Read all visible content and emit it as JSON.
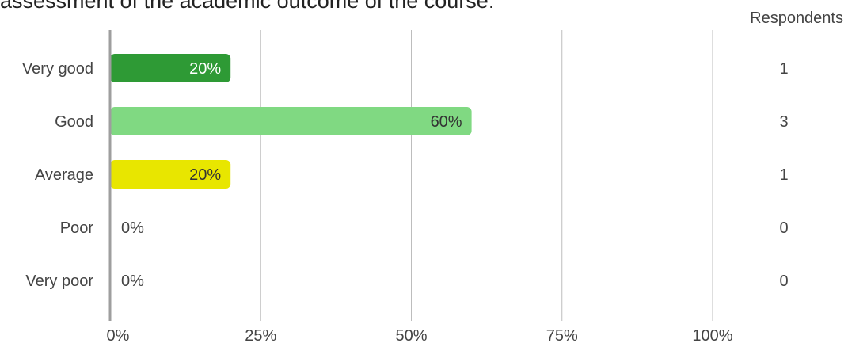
{
  "header": {
    "title": "assessment of the academic outcome of the course:",
    "respondents_label": "Respondents"
  },
  "chart_data": {
    "type": "bar",
    "orientation": "horizontal",
    "title": "assessment of the academic outcome of the course:",
    "categories": [
      "Very good",
      "Good",
      "Average",
      "Poor",
      "Very poor"
    ],
    "values": [
      20,
      60,
      20,
      0,
      0
    ],
    "value_labels": [
      "20%",
      "60%",
      "20%",
      "0%",
      "0%"
    ],
    "respondents": [
      1,
      3,
      1,
      0,
      0
    ],
    "xlim": [
      0,
      100
    ],
    "x_ticks": [
      0,
      25,
      50,
      75,
      100
    ],
    "x_tick_labels": [
      "0%",
      "25%",
      "50%",
      "75%",
      "100%"
    ],
    "grid": true,
    "colors": [
      "#2e9a35",
      "#80d982",
      "#e8e600",
      "#cccccc",
      "#cccccc"
    ],
    "label_colors": [
      "#ffffff",
      "#333333",
      "#333333",
      "#333333",
      "#333333"
    ]
  }
}
